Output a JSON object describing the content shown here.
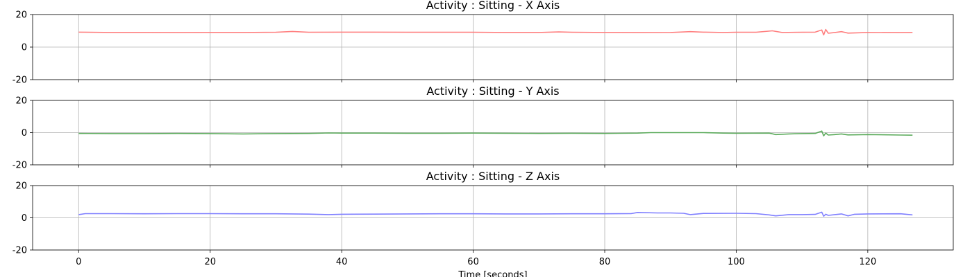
{
  "chart_data": [
    {
      "type": "line",
      "title": "Activity : Sitting - X Axis",
      "xlim": [
        -7,
        133
      ],
      "ylim": [
        -20,
        20
      ],
      "yticks": [
        -20,
        0,
        20
      ],
      "xticks": [
        0,
        20,
        40,
        60,
        80,
        100,
        120
      ],
      "show_xtick_labels": false,
      "xlabel": "",
      "grid": true,
      "series": [
        {
          "color": "#ff7f7f",
          "x": [
            0,
            5,
            10,
            15,
            20,
            25,
            30,
            32.5,
            35,
            40,
            45,
            50,
            55,
            60,
            65,
            70,
            73,
            75,
            80,
            85,
            90,
            93,
            95,
            98,
            100,
            103,
            105.5,
            107,
            110,
            112,
            113,
            113.3,
            113.6,
            114,
            115,
            116,
            117,
            120,
            125,
            126.8
          ],
          "y": [
            9.2,
            9.0,
            9.0,
            8.9,
            9.0,
            9.0,
            9.1,
            9.6,
            9.1,
            9.2,
            9.2,
            9.1,
            9.1,
            9.1,
            9.0,
            9.0,
            9.3,
            9.1,
            9.0,
            8.9,
            9.0,
            9.5,
            9.2,
            9.0,
            9.1,
            9.1,
            10.0,
            9.0,
            9.1,
            9.2,
            10.5,
            7.5,
            10.8,
            8.5,
            9.0,
            9.5,
            8.6,
            9.0,
            8.9,
            9.0
          ]
        }
      ]
    },
    {
      "type": "line",
      "title": "Activity : Sitting - Y Axis",
      "xlim": [
        -7,
        133
      ],
      "ylim": [
        -20,
        20
      ],
      "yticks": [
        -20,
        0,
        20
      ],
      "xticks": [
        0,
        20,
        40,
        60,
        80,
        100,
        120
      ],
      "show_xtick_labels": false,
      "xlabel": "",
      "grid": true,
      "series": [
        {
          "color": "#5cab5c",
          "x": [
            0,
            5,
            10,
            15,
            20,
            25,
            30,
            35,
            38,
            40,
            45,
            50,
            55,
            60,
            65,
            70,
            75,
            80,
            85,
            87,
            90,
            95,
            98,
            100,
            105,
            106,
            108,
            110,
            112,
            113,
            113.3,
            113.6,
            114,
            115,
            116,
            117,
            120,
            125,
            126.8
          ],
          "y": [
            -0.5,
            -0.6,
            -0.6,
            -0.5,
            -0.6,
            -0.8,
            -0.6,
            -0.5,
            -0.2,
            -0.3,
            -0.3,
            -0.4,
            -0.4,
            -0.3,
            -0.4,
            -0.5,
            -0.4,
            -0.5,
            -0.3,
            0.0,
            0.0,
            0.0,
            -0.3,
            -0.4,
            -0.3,
            -1.2,
            -0.8,
            -0.6,
            -0.5,
            1.0,
            -2.0,
            -0.3,
            -1.5,
            -1.2,
            -0.8,
            -1.4,
            -1.2,
            -1.5,
            -1.6
          ]
        }
      ]
    },
    {
      "type": "line",
      "title": "Activity : Sitting - Z Axis",
      "xlim": [
        -7,
        133
      ],
      "ylim": [
        -20,
        20
      ],
      "yticks": [
        -20,
        0,
        20
      ],
      "xticks": [
        0,
        20,
        40,
        60,
        80,
        100,
        120
      ],
      "show_xtick_labels": true,
      "xlabel": "Time [seconds]",
      "grid": true,
      "series": [
        {
          "color": "#7f7fff",
          "x": [
            0,
            1,
            5,
            10,
            15,
            20,
            25,
            30,
            35,
            38,
            40,
            45,
            50,
            55,
            60,
            65,
            70,
            75,
            80,
            84,
            85,
            88,
            90,
            92,
            93,
            95,
            100,
            103,
            105,
            106,
            108,
            110,
            112,
            113,
            113.3,
            113.6,
            114,
            115,
            116,
            117,
            118,
            120,
            125,
            126.8
          ],
          "y": [
            2.0,
            2.6,
            2.6,
            2.5,
            2.6,
            2.6,
            2.5,
            2.5,
            2.3,
            2.0,
            2.2,
            2.3,
            2.4,
            2.5,
            2.5,
            2.4,
            2.4,
            2.5,
            2.5,
            2.6,
            3.3,
            3.0,
            3.0,
            2.8,
            2.0,
            2.7,
            2.8,
            2.6,
            1.8,
            1.2,
            2.0,
            2.0,
            2.1,
            3.5,
            1.0,
            2.2,
            1.5,
            2.0,
            2.4,
            1.2,
            2.2,
            2.4,
            2.5,
            1.8
          ]
        }
      ]
    }
  ]
}
